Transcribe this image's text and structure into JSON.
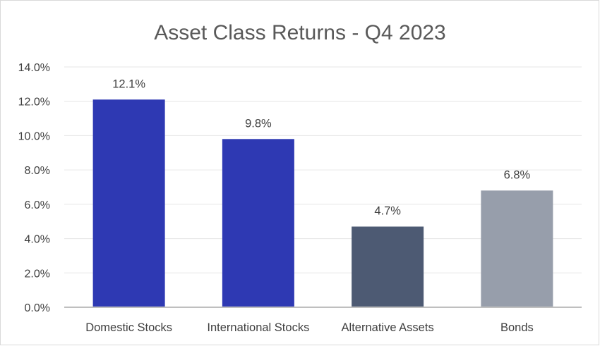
{
  "chart_data": {
    "type": "bar",
    "title": "Asset Class Returns - Q4 2023",
    "xlabel": "",
    "ylabel": "",
    "categories": [
      "Domestic Stocks",
      "International Stocks",
      "Alternative Assets",
      "Bonds"
    ],
    "values": [
      12.1,
      9.8,
      4.7,
      6.8
    ],
    "value_labels": [
      "12.1%",
      "9.8%",
      "4.7%",
      "6.8%"
    ],
    "bar_colors": [
      "#2E39B3",
      "#2E39B3",
      "#4D5A73",
      "#979EAB"
    ],
    "ylim": [
      0,
      14
    ],
    "y_ticks": [
      0,
      2,
      4,
      6,
      8,
      10,
      12,
      14
    ],
    "y_tick_labels": [
      "0.0%",
      "2.0%",
      "4.0%",
      "6.0%",
      "8.0%",
      "10.0%",
      "12.0%",
      "14.0%"
    ],
    "grid": true,
    "legend": "none"
  }
}
